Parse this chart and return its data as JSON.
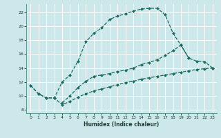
{
  "xlabel": "Humidex (Indice chaleur)",
  "bg_color": "#cce8ea",
  "grid_color": "#ddf0f0",
  "line_color": "#1a6b60",
  "xlim": [
    -0.5,
    23.5
  ],
  "ylim": [
    7.5,
    23.2
  ],
  "xticks": [
    0,
    1,
    2,
    3,
    4,
    5,
    6,
    7,
    8,
    9,
    10,
    11,
    12,
    13,
    14,
    15,
    16,
    17,
    18,
    19,
    20,
    21,
    22,
    23
  ],
  "yticks": [
    8,
    10,
    12,
    14,
    16,
    18,
    20,
    22
  ],
  "curve1_x": [
    0,
    1,
    2,
    3,
    4,
    5,
    6,
    7,
    8,
    9,
    10,
    11,
    12,
    13,
    14,
    15,
    16,
    17,
    18,
    19,
    20
  ],
  "curve1_y": [
    11.5,
    10.3,
    9.7,
    9.7,
    12.0,
    13.0,
    15.0,
    17.8,
    19.0,
    19.8,
    21.0,
    21.5,
    21.8,
    22.2,
    22.5,
    22.6,
    22.6,
    21.7,
    19.0,
    17.3,
    15.4
  ],
  "curve2_x": [
    4,
    5,
    6,
    7,
    8,
    9,
    10,
    11,
    12,
    13,
    14,
    15,
    16,
    17,
    18,
    19,
    20,
    21,
    22,
    23
  ],
  "curve2_y": [
    9.0,
    10.0,
    11.2,
    12.1,
    12.8,
    13.0,
    13.2,
    13.5,
    13.7,
    14.0,
    14.5,
    14.8,
    15.2,
    15.8,
    16.5,
    17.3,
    15.4,
    15.0,
    14.9,
    14.0
  ],
  "curve3_x": [
    0,
    1,
    2,
    3,
    4,
    5,
    6,
    7,
    8,
    9,
    10,
    11,
    12,
    13,
    14,
    15,
    16,
    17,
    18,
    19,
    20,
    21,
    22,
    23
  ],
  "curve3_y": [
    11.5,
    10.3,
    9.7,
    9.7,
    8.7,
    9.2,
    9.8,
    10.3,
    10.7,
    11.0,
    11.3,
    11.6,
    11.9,
    12.1,
    12.4,
    12.6,
    12.8,
    13.0,
    13.2,
    13.4,
    13.6,
    13.8,
    13.9,
    14.0
  ]
}
